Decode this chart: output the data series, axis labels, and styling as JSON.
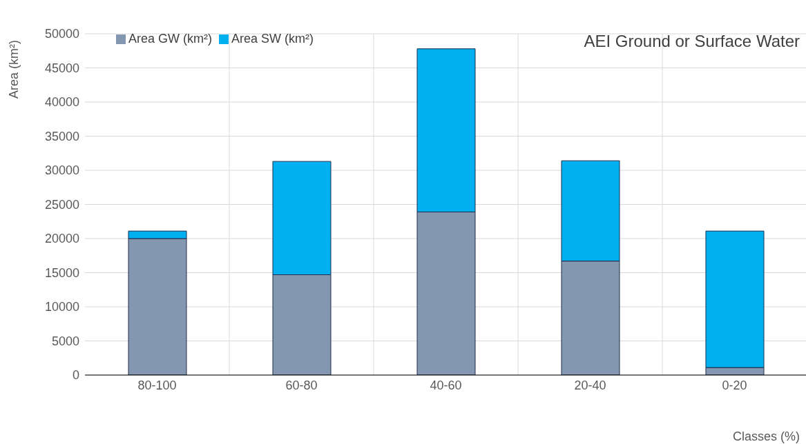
{
  "chart_data": {
    "type": "bar",
    "title": "AEI Ground or Surface Water",
    "xlabel": "Classes (%)",
    "ylabel": "Area (km²)",
    "categories": [
      "80-100",
      "60-80",
      "40-60",
      "20-40",
      "0-20"
    ],
    "series": [
      {
        "name": "Area GW (km²)",
        "color": "#8497b0",
        "values": [
          20000,
          14700,
          23900,
          16700,
          1100
        ]
      },
      {
        "name": "Area SW (km²)",
        "color": "#00b0f0",
        "values": [
          1100,
          16600,
          23900,
          14700,
          20000
        ]
      }
    ],
    "stacked": true,
    "ylim": [
      0,
      50000
    ],
    "yticks": [
      0,
      5000,
      10000,
      15000,
      20000,
      25000,
      30000,
      35000,
      40000,
      45000,
      50000
    ],
    "grid": true,
    "legend": "top left"
  }
}
